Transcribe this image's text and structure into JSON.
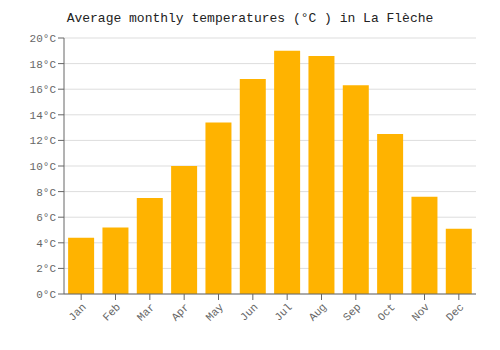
{
  "chart_data": {
    "type": "bar",
    "title": "Average monthly temperatures (°C ) in La Flèche",
    "categories": [
      "Jan",
      "Feb",
      "Mar",
      "Apr",
      "May",
      "Jun",
      "Jul",
      "Aug",
      "Sep",
      "Oct",
      "Nov",
      "Dec"
    ],
    "values": [
      4.4,
      5.2,
      7.5,
      10.0,
      13.4,
      16.8,
      19.0,
      18.6,
      16.3,
      12.5,
      7.6,
      5.1
    ],
    "color": "#FFB300",
    "ylim": [
      0,
      20
    ],
    "yticks": [
      {
        "value": 0,
        "label": "0°C"
      },
      {
        "value": 2,
        "label": "2°C"
      },
      {
        "value": 4,
        "label": "4°C"
      },
      {
        "value": 6,
        "label": "6°C"
      },
      {
        "value": 8,
        "label": "8°C"
      },
      {
        "value": 10,
        "label": "10°C"
      },
      {
        "value": 12,
        "label": "12°C"
      },
      {
        "value": 14,
        "label": "14°C"
      },
      {
        "value": 16,
        "label": "16°C"
      },
      {
        "value": 18,
        "label": "18°C"
      },
      {
        "value": 20,
        "label": "20°C"
      }
    ],
    "grid": true
  }
}
